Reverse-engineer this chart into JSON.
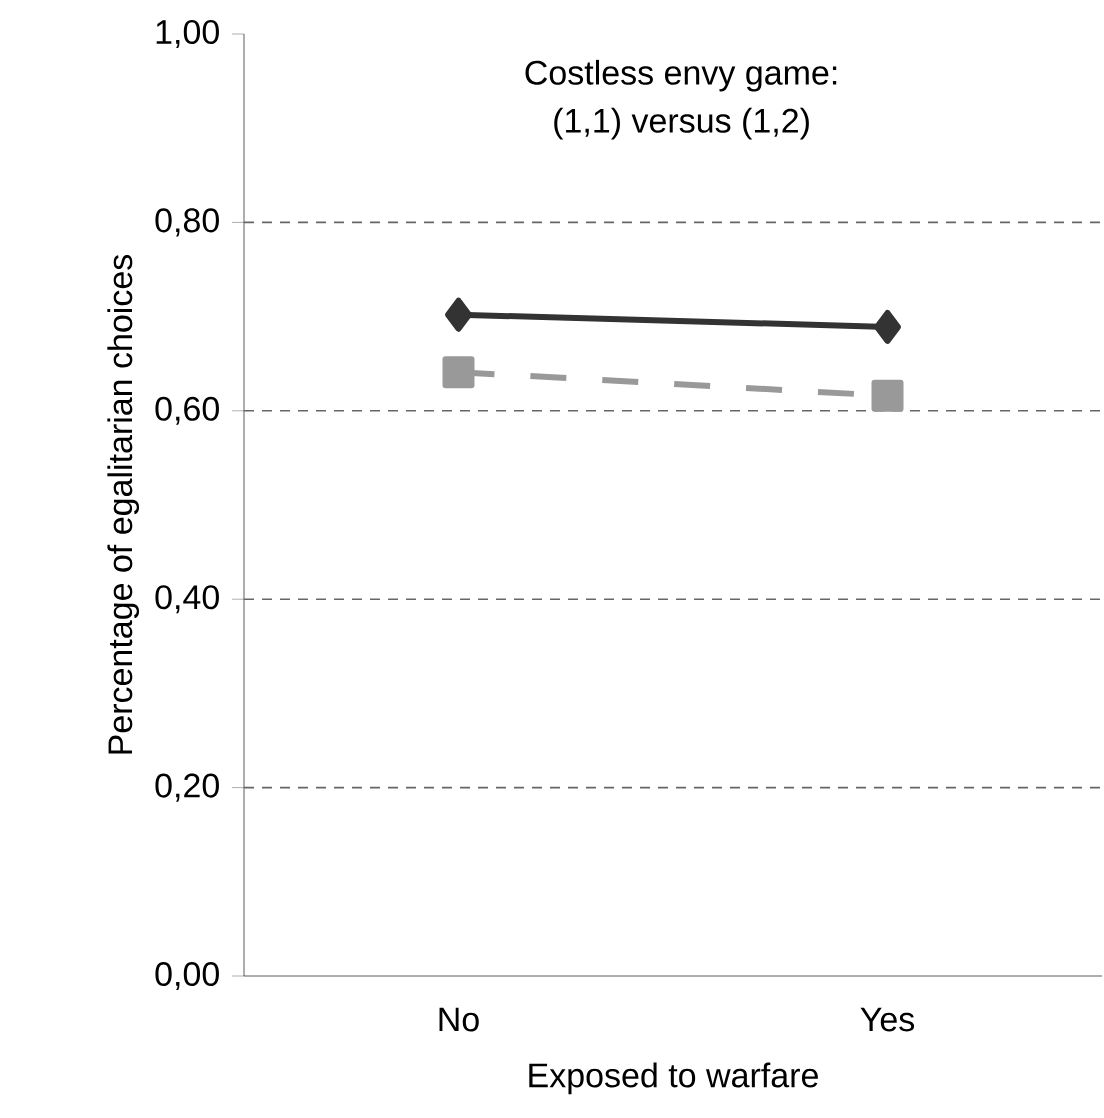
{
  "chart_data": {
    "type": "line",
    "title": "Costless envy game:",
    "subtitle": "(1,1) versus (1,2)",
    "xlabel": "Exposed to warfare",
    "ylabel": "Percentage of egalitarian choices",
    "categories": [
      "No",
      "Yes"
    ],
    "series": [
      {
        "color": "#333333",
        "marker": "diamond",
        "line_style": "solid",
        "values": [
          0.702,
          0.689
        ]
      },
      {
        "color": "#999999",
        "marker": "square",
        "line_style": "dashed",
        "values": [
          0.641,
          0.616
        ]
      }
    ],
    "ylim": [
      0,
      1
    ],
    "yticks": [
      {
        "value": 0,
        "label": "0,00"
      },
      {
        "value": 0.2,
        "label": "0,20"
      },
      {
        "value": 0.4,
        "label": "0,40"
      },
      {
        "value": 0.6,
        "label": "0,60"
      },
      {
        "value": 0.8,
        "label": "0,80"
      },
      {
        "value": 1,
        "label": "1,00"
      }
    ],
    "grid": "y"
  }
}
